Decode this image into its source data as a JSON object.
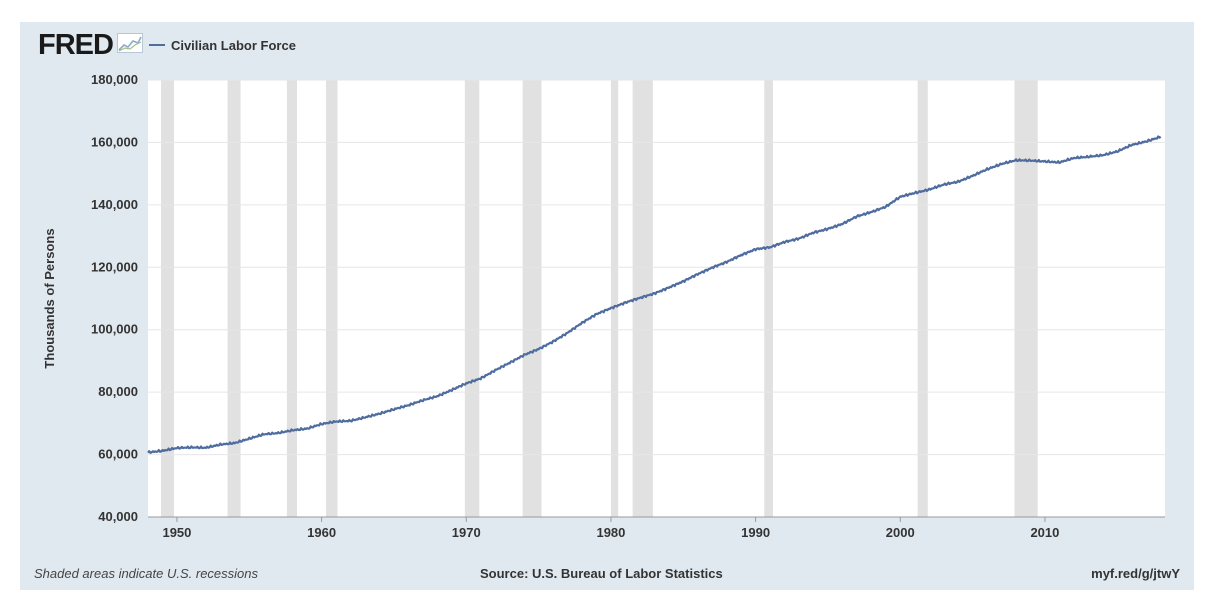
{
  "header": {
    "logo_text": "FRED",
    "logo_icon": "chart-line-icon",
    "legend_label": "Civilian Labor Force"
  },
  "footer": {
    "recession_note": "Shaded areas indicate U.S. recessions",
    "source": "Source: U.S. Bureau of Labor Statistics",
    "url": "myf.red/g/jtwY"
  },
  "colors": {
    "background": "#e1e9f0",
    "plot_background": "#ffffff",
    "line": "#4e6c9e",
    "recession": "#e1e1e1",
    "grid": "#e6e6e6"
  },
  "chart_data": {
    "type": "line",
    "title": "",
    "xlabel": "",
    "ylabel": "Thousands of Persons",
    "xlim": [
      1948,
      2018.3
    ],
    "ylim": [
      40000,
      180000
    ],
    "xticks": [
      1950,
      1960,
      1970,
      1980,
      1990,
      2000,
      2010
    ],
    "yticks": [
      40000,
      60000,
      80000,
      100000,
      120000,
      140000,
      160000,
      180000
    ],
    "ytick_labels": [
      "40,000",
      "60,000",
      "80,000",
      "100,000",
      "120,000",
      "140,000",
      "160,000",
      "180,000"
    ],
    "grid": true,
    "legend": "top-left",
    "recessions": [
      [
        1948.9,
        1949.8
      ],
      [
        1953.5,
        1954.4
      ],
      [
        1957.6,
        1958.3
      ],
      [
        1960.3,
        1961.1
      ],
      [
        1969.9,
        1970.9
      ],
      [
        1973.9,
        1975.2
      ],
      [
        1980.0,
        1980.5
      ],
      [
        1981.5,
        1982.9
      ],
      [
        1990.6,
        1991.2
      ],
      [
        2001.2,
        2001.9
      ],
      [
        2007.9,
        2009.5
      ]
    ],
    "series": [
      {
        "name": "Civilian Labor Force",
        "x": [
          1948,
          1949,
          1950,
          1951,
          1952,
          1953,
          1954,
          1955,
          1956,
          1957,
          1958,
          1959,
          1960,
          1961,
          1962,
          1963,
          1964,
          1965,
          1966,
          1967,
          1968,
          1969,
          1970,
          1971,
          1972,
          1973,
          1974,
          1975,
          1976,
          1977,
          1978,
          1979,
          1980,
          1981,
          1982,
          1983,
          1984,
          1985,
          1986,
          1987,
          1988,
          1989,
          1990,
          1991,
          1992,
          1993,
          1994,
          1995,
          1996,
          1997,
          1998,
          1999,
          2000,
          2001,
          2002,
          2003,
          2004,
          2005,
          2006,
          2007,
          2008,
          2009,
          2010,
          2011,
          2012,
          2013,
          2014,
          2015,
          2016,
          2017,
          2018
        ],
        "values": [
          60700,
          61200,
          62100,
          62300,
          62200,
          63200,
          63700,
          65100,
          66500,
          66900,
          67800,
          68300,
          69800,
          70600,
          70800,
          71900,
          73100,
          74500,
          75800,
          77400,
          78700,
          80700,
          82800,
          84400,
          87000,
          89400,
          91900,
          93800,
          96200,
          99000,
          102200,
          105000,
          106900,
          108700,
          110200,
          111600,
          113500,
          115500,
          117800,
          119900,
          121700,
          123900,
          125800,
          126400,
          128100,
          129200,
          131100,
          132300,
          133900,
          136300,
          137700,
          139400,
          142600,
          143800,
          144900,
          146500,
          147400,
          149300,
          151400,
          153100,
          154300,
          154200,
          153900,
          153600,
          155000,
          155400,
          155900,
          157100,
          159200,
          160300,
          161800
        ]
      }
    ]
  }
}
